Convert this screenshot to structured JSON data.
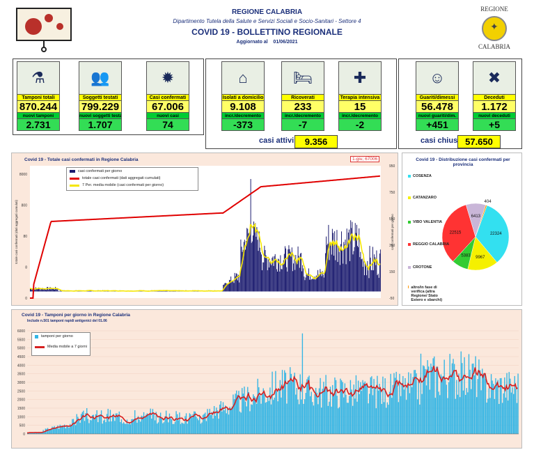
{
  "header": {
    "region": "REGIONE CALABRIA",
    "department": "Dipartimento Tutela della Salute e Servizi Sociali e Socio-Sanitari - Settore 4",
    "title": "COVID 19 - BOLLETTINO REGIONALE",
    "updated_label": "Aggiornato al",
    "updated_date": "01/06/2021",
    "logo_top": "REGIONE",
    "logo_bottom": "CALABRIA"
  },
  "kpis": [
    {
      "label": "Tamponi totali",
      "value": "870.244",
      "sub_label": "nuovi tamponi",
      "sub_value": "2.731",
      "icon": "lab-icon"
    },
    {
      "label": "Soggetti testati",
      "value": "799.229",
      "sub_label": "nuovi soggetti testati",
      "sub_value": "1.707",
      "icon": "people-icon"
    },
    {
      "label": "Casi confermati",
      "value": "67.006",
      "sub_label": "nuovi casi",
      "sub_value": "74",
      "icon": "virus-people-icon"
    },
    {
      "label": "Isolati a domicilio",
      "value": "9.108",
      "sub_label": "incr./decremento",
      "sub_value": "-373",
      "icon": "house-icon"
    },
    {
      "label": "Ricoverati",
      "value": "233",
      "sub_label": "incr./decremento",
      "sub_value": "-7",
      "icon": "hospital-bed-icon"
    },
    {
      "label": "Terapia intensiva",
      "value": "15",
      "sub_label": "incr./decremento",
      "sub_value": "-2",
      "icon": "icu-icon"
    },
    {
      "label": "Guariti/dimessi",
      "value": "56.478",
      "sub_label": "nuovi guariti/dim.",
      "sub_value": "+451",
      "icon": "recovered-icon"
    },
    {
      "label": "Deceduti",
      "value": "1.172",
      "sub_label": "nuovi deceduti",
      "sub_value": "+5",
      "icon": "deceased-stamp-icon"
    }
  ],
  "casi_attivi": {
    "label": "casi attivi",
    "value": "9.356"
  },
  "casi_chiusi": {
    "label": "casi chiusi",
    "value": "57.650"
  },
  "chart_data": [
    {
      "type": "bar",
      "title": "Covid 19 - Totale casi confermati in Regione Calabria",
      "annotation": "1-giu; 67006",
      "ylabel_left": "totale casi confermati (dati aggregati cumulati)",
      "ylabel_right": "casi confermati per giorno",
      "left_ticks": [
        "8000",
        "800",
        "80",
        "8",
        "0"
      ],
      "right_ticks": [
        "950",
        "750",
        "550",
        "350",
        "150",
        "-50"
      ],
      "series": [
        {
          "name": "casi confermati per giorno",
          "color": "#1a1a6e"
        },
        {
          "name": "totale casi confermati (dati aggregati cumulati)",
          "color": "#e00000"
        },
        {
          "name": "7 Per. media mobile (casi confermati per giorno)",
          "color": "#f5e600"
        }
      ],
      "cumulative_final": 67006,
      "daily_peak_approx": 850,
      "y2lim": [
        -50,
        950
      ]
    },
    {
      "type": "pie",
      "title": "Covid 19 - Distribuzione casi confermati per provincia",
      "categories": [
        "COSENZA",
        "CATANZARO",
        "VIBO VALENTIA",
        "REGGIO CALABRIA",
        "CROTONE",
        "altro/in fase di verifica (altra Regione/ Stato Estero e sbarchi)"
      ],
      "values": [
        22324,
        9967,
        5383,
        22515,
        6413,
        404
      ],
      "colors": [
        "#33e0f0",
        "#f5f000",
        "#33cc33",
        "#ff3333",
        "#c9b6d8",
        "#ff9900"
      ]
    },
    {
      "type": "bar",
      "title": "Covid 19 - Tamponi per giorno in Regione Calabria",
      "subtitle": "Include n.501 tamponi rapidi antigenici del 01.06",
      "y_ticks": [
        "6000",
        "5500",
        "5000",
        "4500",
        "4000",
        "3500",
        "3000",
        "2500",
        "2000",
        "1500",
        "1000",
        "500",
        "0"
      ],
      "ylim": [
        0,
        6000
      ],
      "series": [
        {
          "name": "tamponi per giorno",
          "color": "#33b5e5"
        },
        {
          "name": "Media mobile a 7 giorni",
          "color": "#d62020"
        }
      ],
      "peak_approx": 5850
    }
  ]
}
